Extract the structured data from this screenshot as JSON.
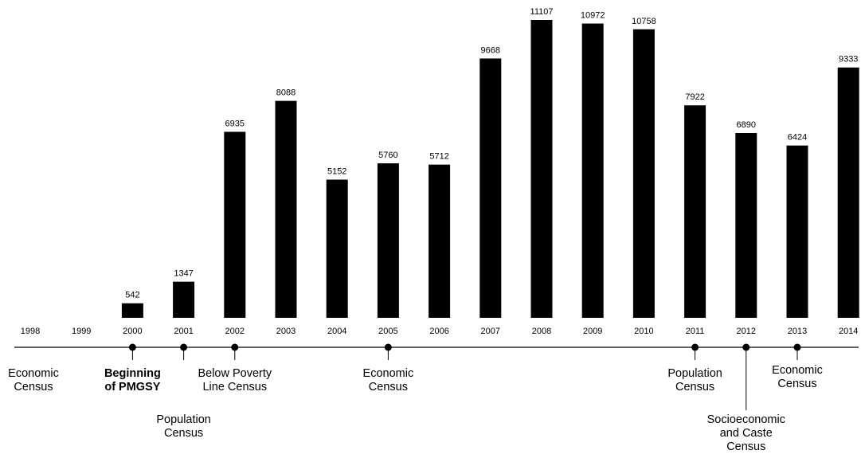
{
  "chart_data": {
    "type": "bar",
    "title": "",
    "xlabel": "",
    "ylabel": "",
    "categories": [
      "1998",
      "1999",
      "2000",
      "2001",
      "2002",
      "2003",
      "2004",
      "2005",
      "2006",
      "2007",
      "2008",
      "2009",
      "2010",
      "2011",
      "2012",
      "2013",
      "2014"
    ],
    "values": [
      null,
      null,
      542,
      1347,
      6935,
      8088,
      5152,
      5760,
      5712,
      9668,
      11107,
      10972,
      10758,
      7922,
      6890,
      6424,
      9333
    ],
    "value_labels": [
      "",
      "",
      "542",
      "1347",
      "6935",
      "8088",
      "5152",
      "5760",
      "5712",
      "9668",
      "11107",
      "10972",
      "10758",
      "7922",
      "6890",
      "6424",
      "9333"
    ],
    "ylim": [
      0,
      11107
    ],
    "bar_color": "#000000",
    "grid": false,
    "legend": "none",
    "timeline": {
      "events": [
        {
          "year": "1998",
          "lines": [
            "Economic",
            "Census"
          ],
          "bold": false,
          "dot": false
        },
        {
          "year": "2000",
          "lines": [
            "Beginning",
            "of PMGSY"
          ],
          "bold": true,
          "dot": true
        },
        {
          "year": "2001",
          "lines": [
            "Population",
            "Census"
          ],
          "bold": false,
          "dot": true
        },
        {
          "year": "2002",
          "lines": [
            "Below Poverty",
            "Line Census"
          ],
          "bold": false,
          "dot": true
        },
        {
          "year": "2005",
          "lines": [
            "Economic",
            "Census"
          ],
          "bold": false,
          "dot": true
        },
        {
          "year": "2011",
          "lines": [
            "Population",
            "Census"
          ],
          "bold": false,
          "dot": true
        },
        {
          "year": "2012",
          "lines": [
            "Socioeconomic",
            "and Caste",
            "Census"
          ],
          "bold": false,
          "dot": true
        },
        {
          "year": "2013",
          "lines": [
            "Economic",
            "Census"
          ],
          "bold": false,
          "dot": true
        }
      ]
    }
  }
}
